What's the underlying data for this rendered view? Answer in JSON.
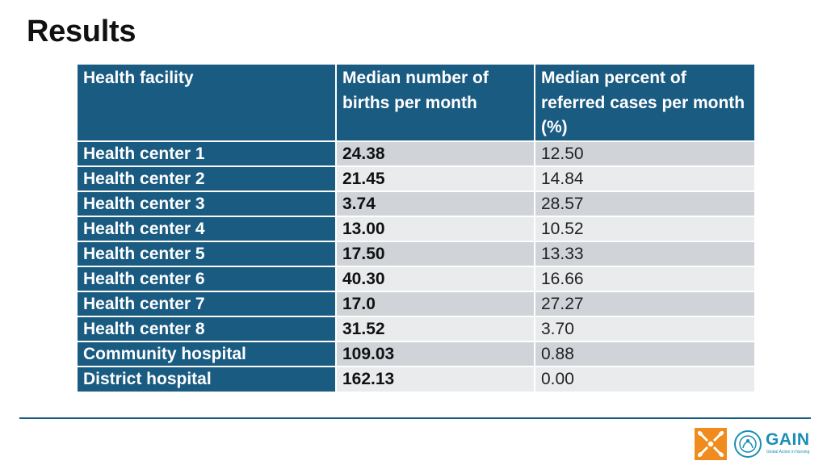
{
  "title": "Results",
  "table": {
    "headers": [
      "Health facility",
      "Median number of births per month",
      "Median percent of referred cases per month (%)"
    ],
    "rows": [
      {
        "facility": "Health center 1",
        "births": "24.38",
        "referred": "12.50"
      },
      {
        "facility": "Health center 2",
        "births": "21.45",
        "referred": "14.84"
      },
      {
        "facility": "Health center 3",
        "births": "3.74",
        "referred": "28.57"
      },
      {
        "facility": "Health center 4",
        "births": "13.00",
        "referred": "10.52"
      },
      {
        "facility": "Health center 5",
        "births": "17.50",
        "referred": "13.33"
      },
      {
        "facility": "Health center 6",
        "births": "40.30",
        "referred": "16.66"
      },
      {
        "facility": "Health center 7",
        "births": "17.0",
        "referred": "27.27"
      },
      {
        "facility": "Health center 8",
        "births": "31.52",
        "referred": "3.70"
      },
      {
        "facility": "Community hospital",
        "births": "109.03",
        "referred": "0.88"
      },
      {
        "facility": "District hospital",
        "births": "162.13",
        "referred": "0.00"
      }
    ]
  },
  "logos": {
    "gain_name": "GAIN",
    "gain_tagline": "Global Action in Nursing"
  },
  "colors": {
    "header_blue": "#1a5b82",
    "row_dark": "#d0d4d9",
    "row_light": "#e9ebed",
    "logo_orange": "#f08c1e",
    "logo_teal": "#1a8fb5"
  }
}
